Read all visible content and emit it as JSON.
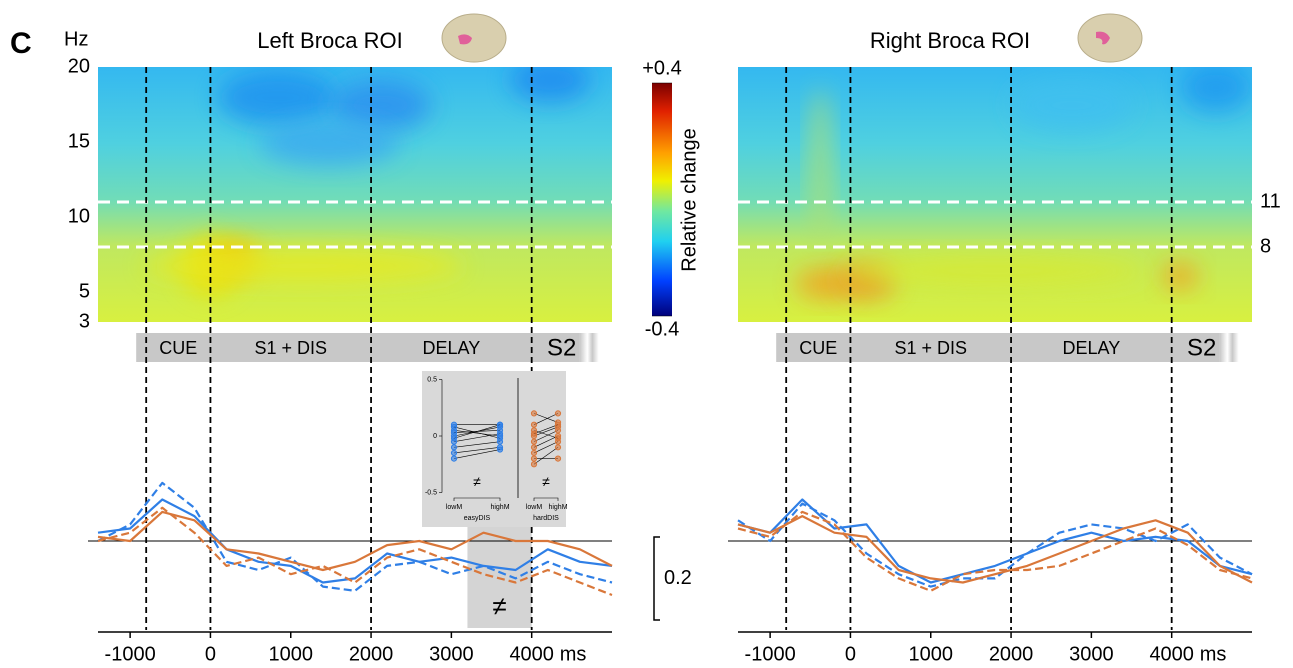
{
  "panel_label": "C",
  "freq_axis_label": "Hz",
  "time_unit": "ms",
  "epochs": [
    "CUE",
    "S1 + DIS",
    "DELAY",
    "S2"
  ],
  "event_times": [
    -800,
    0,
    2000,
    4000
  ],
  "band_lines": [
    11,
    8
  ],
  "difference_mark": "≠",
  "scale_bar": {
    "value": 0.2,
    "label": "0.2"
  },
  "colorbar": {
    "label": "Relative change",
    "clim": [
      -0.4,
      0.4
    ],
    "ticks": [
      {
        "value": 0.4,
        "label": "+0.4"
      },
      {
        "value": -0.4,
        "label": "-0.4"
      }
    ]
  },
  "inset": {
    "ylim": [
      -0.5,
      0.5
    ],
    "yticks": [
      0.5,
      0,
      -0.5
    ],
    "categories": [
      "lowM",
      "highM"
    ],
    "groups": [
      {
        "name": "easyDIS",
        "color": "#2f7fe6",
        "pairs": [
          [
            0.1,
            0.1
          ],
          [
            0.05,
            0.0
          ],
          [
            0.0,
            0.08
          ],
          [
            -0.05,
            0.02
          ],
          [
            -0.1,
            -0.05
          ],
          [
            0.08,
            -0.02
          ],
          [
            -0.02,
            0.1
          ],
          [
            -0.15,
            -0.1
          ],
          [
            0.03,
            0.05
          ],
          [
            -0.2,
            -0.12
          ]
        ]
      },
      {
        "name": "hardDIS",
        "color": "#d9773a",
        "pairs": [
          [
            0.2,
            0.12
          ],
          [
            0.1,
            0.2
          ],
          [
            0.0,
            0.08
          ],
          [
            -0.05,
            0.05
          ],
          [
            -0.1,
            0.0
          ],
          [
            0.05,
            -0.02
          ],
          [
            -0.15,
            -0.05
          ],
          [
            -0.25,
            -0.1
          ],
          [
            0.02,
            0.1
          ],
          [
            -0.2,
            -0.2
          ]
        ]
      }
    ]
  },
  "chart_data": [
    {
      "type": "line",
      "title": "Left Broca ROI",
      "xlim": [
        -1400,
        5000
      ],
      "xticks": [
        -1000,
        0,
        1000,
        2000,
        3000,
        4000
      ],
      "freq_lim": [
        3,
        20
      ],
      "freq_ticks": [
        20,
        15,
        10,
        5,
        3
      ],
      "ylim": [
        -0.2,
        0.2
      ],
      "significant_window": [
        3200,
        4000
      ],
      "x": [
        -1400,
        -1000,
        -600,
        -200,
        200,
        600,
        1000,
        1400,
        1800,
        2200,
        2600,
        3000,
        3400,
        3800,
        4200,
        4600,
        5000
      ],
      "series": [
        {
          "color": "#2f7fe6",
          "dashed": false,
          "values": [
            0.02,
            0.03,
            0.1,
            0.06,
            -0.02,
            -0.05,
            -0.06,
            -0.1,
            -0.09,
            -0.03,
            -0.05,
            -0.04,
            -0.06,
            -0.07,
            -0.02,
            -0.05,
            -0.06
          ]
        },
        {
          "color": "#2f7fe6",
          "dashed": true,
          "values": [
            0.0,
            0.04,
            0.14,
            0.08,
            -0.05,
            -0.07,
            -0.04,
            -0.11,
            -0.12,
            -0.06,
            -0.05,
            -0.08,
            -0.06,
            -0.09,
            -0.05,
            -0.08,
            -0.1
          ]
        },
        {
          "color": "#d9773a",
          "dashed": false,
          "values": [
            0.01,
            0.0,
            0.07,
            0.05,
            -0.02,
            -0.03,
            -0.05,
            -0.07,
            -0.05,
            -0.01,
            0.0,
            -0.02,
            0.02,
            0.0,
            0.0,
            -0.02,
            -0.06
          ]
        },
        {
          "color": "#d9773a",
          "dashed": true,
          "values": [
            0.0,
            0.02,
            0.08,
            0.02,
            -0.06,
            -0.04,
            -0.08,
            -0.06,
            -0.1,
            -0.04,
            -0.02,
            -0.05,
            -0.08,
            -0.1,
            -0.07,
            -0.1,
            -0.13
          ]
        }
      ]
    },
    {
      "type": "line",
      "title": "Right Broca ROI",
      "xlim": [
        -1400,
        5000
      ],
      "xticks": [
        -1000,
        0,
        1000,
        2000,
        3000,
        4000
      ],
      "freq_lim": [
        3,
        20
      ],
      "ylim": [
        -0.2,
        0.2
      ],
      "x": [
        -1400,
        -1000,
        -600,
        -200,
        200,
        600,
        1000,
        1400,
        1800,
        2200,
        2600,
        3000,
        3400,
        3800,
        4200,
        4600,
        5000
      ],
      "series": [
        {
          "color": "#2f7fe6",
          "dashed": false,
          "values": [
            0.04,
            0.02,
            0.1,
            0.03,
            0.04,
            -0.06,
            -0.1,
            -0.08,
            -0.06,
            -0.03,
            0.0,
            0.02,
            0.0,
            0.01,
            0.0,
            -0.06,
            -0.08
          ]
        },
        {
          "color": "#2f7fe6",
          "dashed": true,
          "values": [
            0.05,
            0.0,
            0.09,
            0.05,
            -0.03,
            -0.08,
            -0.11,
            -0.09,
            -0.09,
            -0.03,
            0.02,
            0.04,
            0.03,
            0.0,
            0.04,
            -0.04,
            -0.08
          ]
        },
        {
          "color": "#d9773a",
          "dashed": false,
          "values": [
            0.04,
            0.02,
            0.06,
            0.02,
            0.01,
            -0.07,
            -0.09,
            -0.1,
            -0.08,
            -0.06,
            -0.03,
            0.0,
            0.03,
            0.05,
            0.02,
            -0.06,
            -0.1
          ]
        },
        {
          "color": "#d9773a",
          "dashed": true,
          "values": [
            0.03,
            0.01,
            0.07,
            0.04,
            -0.04,
            -0.09,
            -0.12,
            -0.08,
            -0.07,
            -0.07,
            -0.06,
            -0.03,
            0.0,
            0.03,
            -0.01,
            -0.07,
            -0.09
          ]
        }
      ]
    }
  ]
}
